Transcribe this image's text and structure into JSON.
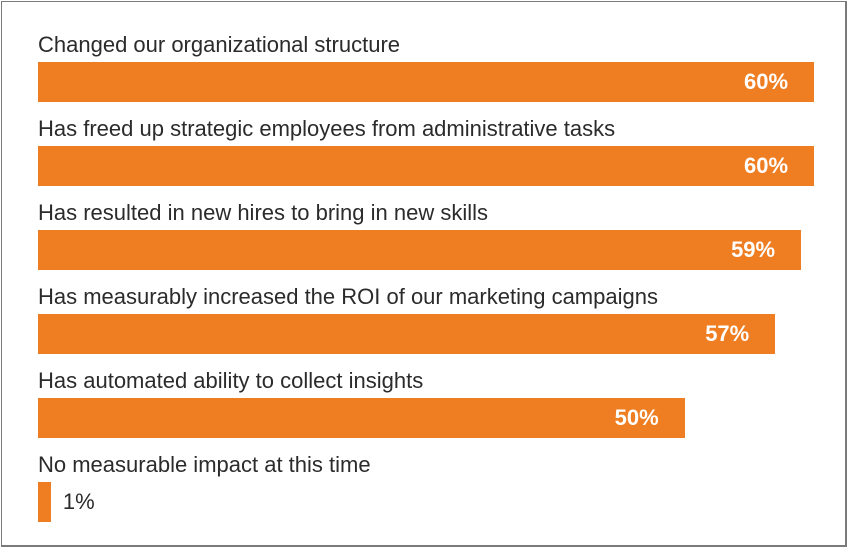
{
  "chart_data": {
    "type": "bar",
    "orientation": "horizontal",
    "categories": [
      "Changed our organizational structure",
      "Has freed up strategic employees from administrative tasks",
      "Has resulted in new hires to bring in new skills",
      "Has measurably increased the ROI of our marketing campaigns",
      "Has automated ability to collect insights",
      "No measurable impact at this time"
    ],
    "values": [
      60,
      60,
      59,
      57,
      50,
      1
    ],
    "value_labels": [
      "60%",
      "60%",
      "59%",
      "57%",
      "50%",
      "1%"
    ],
    "xlim": [
      0,
      60
    ],
    "grid": false,
    "bar_color": "#ef7d22"
  }
}
